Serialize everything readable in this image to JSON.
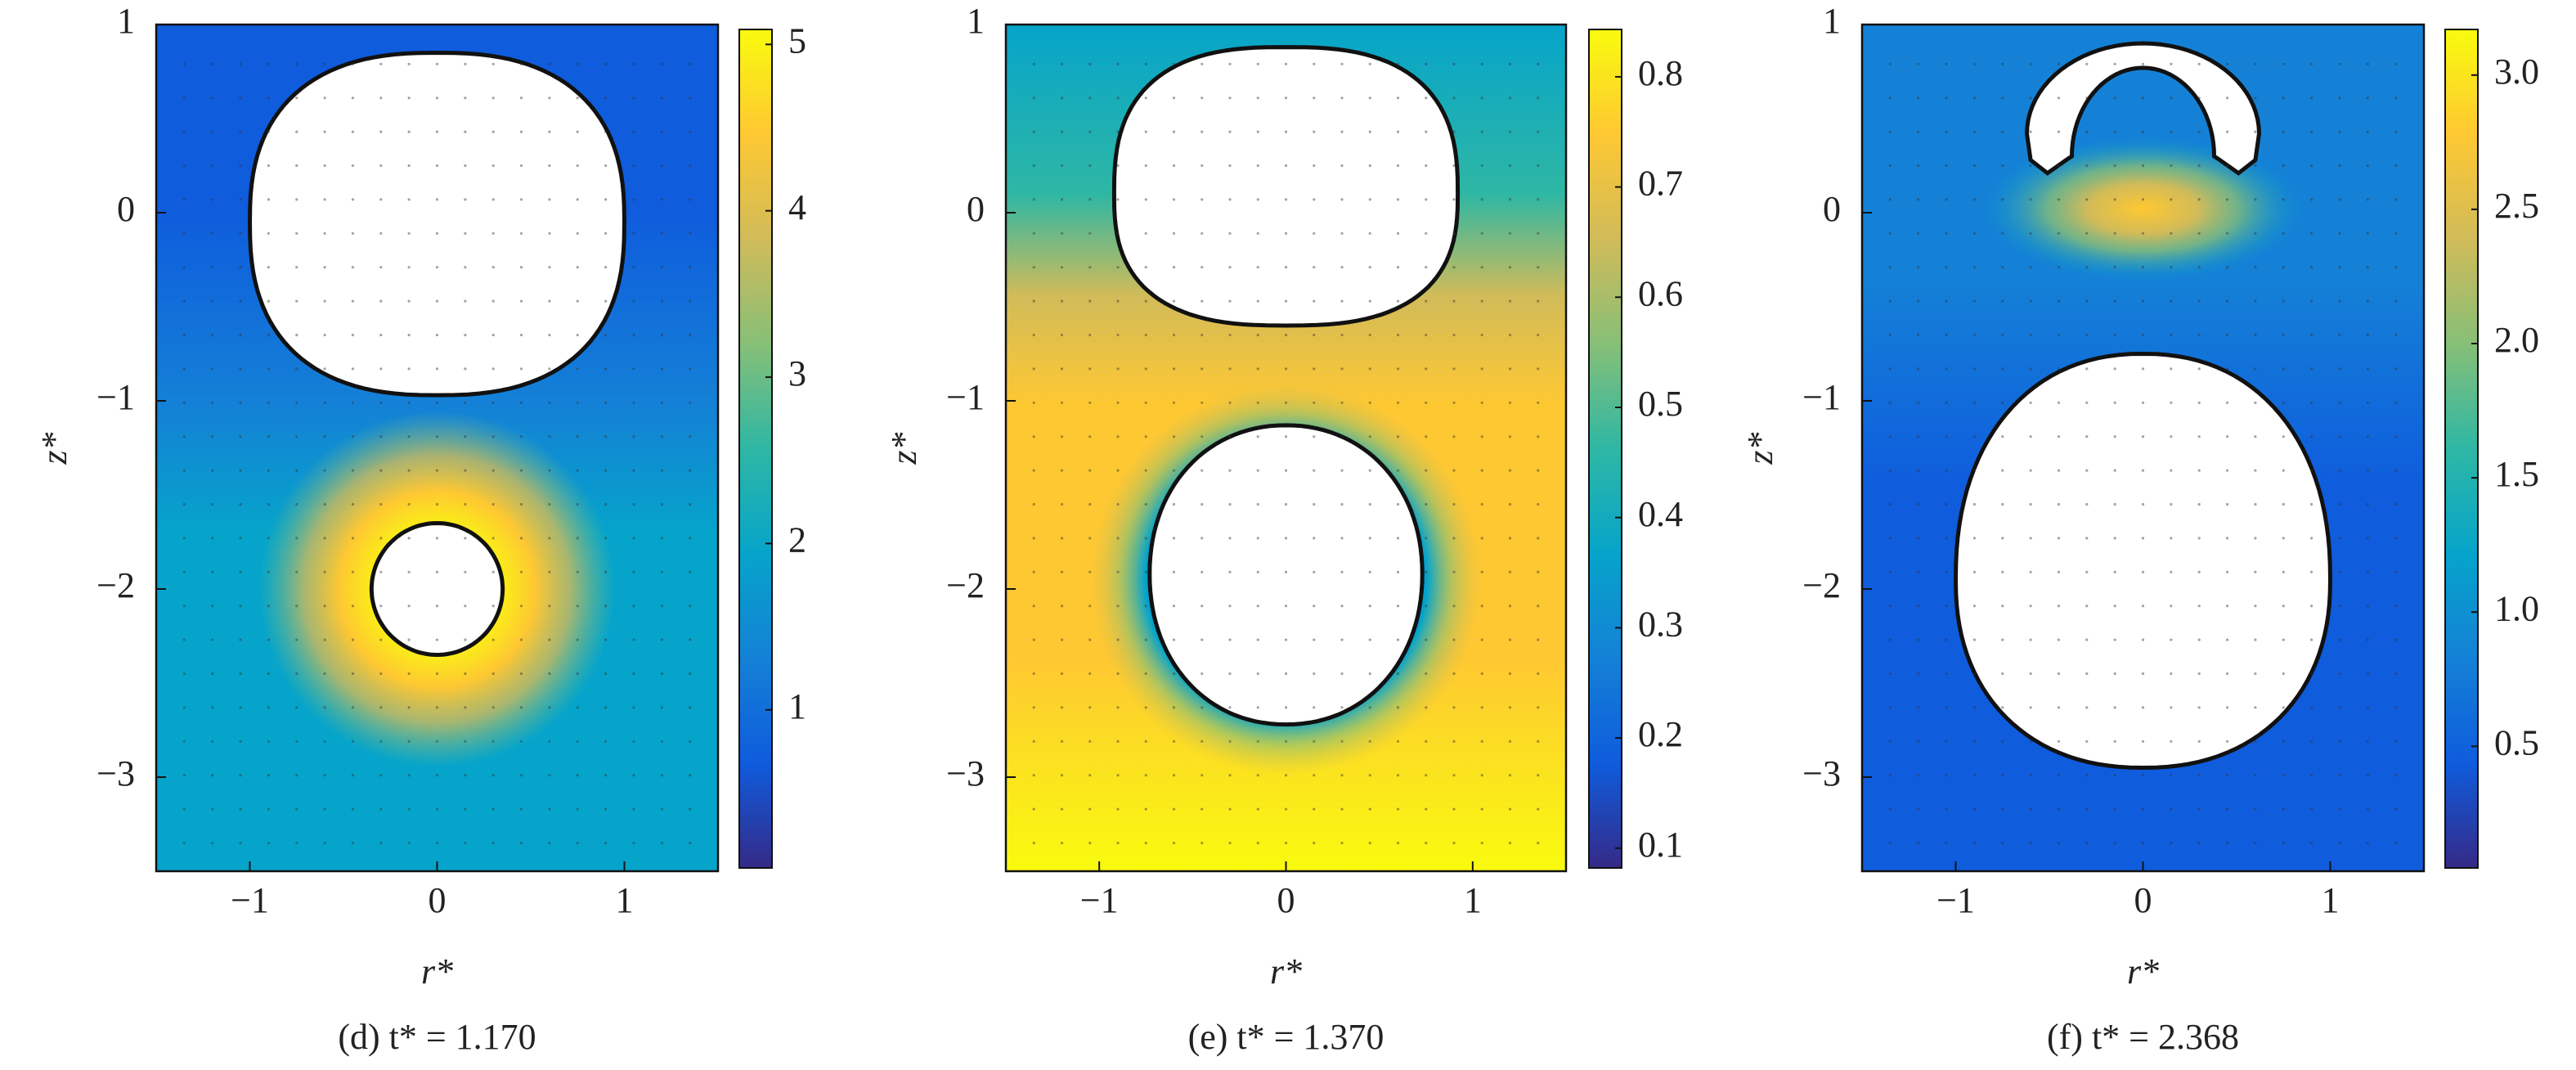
{
  "chart_data": [
    {
      "type": "heatmap",
      "caption": "(d) t* = 1.170",
      "xlabel": "r*",
      "ylabel": "z*",
      "xlim": [
        -1.5,
        1.5
      ],
      "ylim": [
        -3.5,
        1
      ],
      "xticks": [
        {
          "value": -1,
          "label": "−1"
        },
        0,
        1
      ],
      "yticks": [
        1,
        0,
        {
          "value": -1,
          "label": "−1"
        },
        {
          "value": -2,
          "label": "−2"
        },
        {
          "value": -3,
          "label": "−3"
        }
      ],
      "clim": [
        0.05,
        5.09
      ],
      "cticks": [
        1,
        2,
        3,
        4,
        5
      ],
      "colormap": [
        "#352a87",
        "#0f5cdd",
        "#1481d6",
        "#06a4ca",
        "#2eb7a4",
        "#87bf77",
        "#d1bb59",
        "#fec832",
        "#f9fb0e"
      ]
    },
    {
      "type": "heatmap",
      "caption": "(e) t* = 1.370",
      "xlabel": "r*",
      "ylabel": "z*",
      "xlim": [
        -1.5,
        1.5
      ],
      "ylim": [
        -3.5,
        1
      ],
      "xticks": [
        {
          "value": -1,
          "label": "−1"
        },
        0,
        1
      ],
      "yticks": [
        1,
        0,
        {
          "value": -1,
          "label": "−1"
        },
        {
          "value": -2,
          "label": "−2"
        },
        {
          "value": -3,
          "label": "−3"
        }
      ],
      "clim": [
        0.082,
        0.843
      ],
      "cticks": [
        0.1,
        0.2,
        0.3,
        0.4,
        0.5,
        0.6,
        0.7,
        0.8
      ],
      "colormap": [
        "#352a87",
        "#0f5cdd",
        "#1481d6",
        "#06a4ca",
        "#2eb7a4",
        "#87bf77",
        "#d1bb59",
        "#fec832",
        "#f9fb0e"
      ]
    },
    {
      "type": "heatmap",
      "caption": "(f) t* = 2.368",
      "xlabel": "r*",
      "ylabel": "z*",
      "xlim": [
        -1.5,
        1.5
      ],
      "ylim": [
        -3.5,
        1
      ],
      "xticks": [
        {
          "value": -1,
          "label": "−1"
        },
        0,
        1
      ],
      "yticks": [
        1,
        0,
        {
          "value": -1,
          "label": "−1"
        },
        {
          "value": -2,
          "label": "−2"
        },
        {
          "value": -3,
          "label": "−3"
        }
      ],
      "clim": [
        0.047,
        3.17
      ],
      "cticks": [
        0.5,
        {
          "value": 1,
          "label": "1.0"
        },
        1.5,
        {
          "value": 2,
          "label": "2.0"
        },
        2.5,
        {
          "value": 3,
          "label": "3.0"
        }
      ],
      "colormap": [
        "#352a87",
        "#0f5cdd",
        "#1481d6",
        "#06a4ca",
        "#2eb7a4",
        "#87bf77",
        "#d1bb59",
        "#fec832",
        "#f9fb0e"
      ]
    }
  ]
}
